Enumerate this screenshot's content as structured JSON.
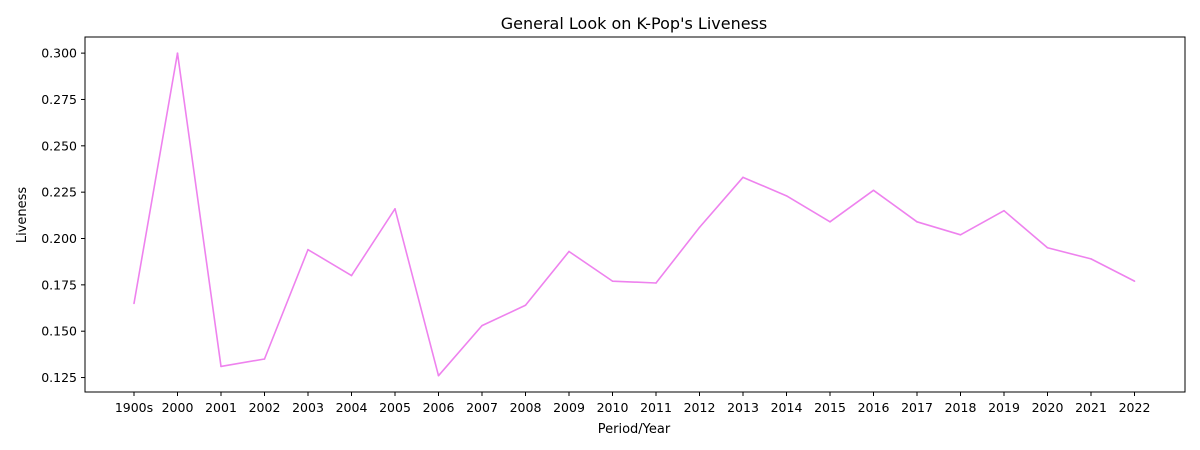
{
  "chart_data": {
    "type": "line",
    "title": "General Look on K-Pop's Liveness",
    "xlabel": "Period/Year",
    "ylabel": "Liveness",
    "categories": [
      "1900s",
      "2000",
      "2001",
      "2002",
      "2003",
      "2004",
      "2005",
      "2006",
      "2007",
      "2008",
      "2009",
      "2010",
      "2011",
      "2012",
      "2013",
      "2014",
      "2015",
      "2016",
      "2017",
      "2018",
      "2019",
      "2020",
      "2021",
      "2022"
    ],
    "series": [
      {
        "values": [
          0.165,
          0.3,
          0.131,
          0.135,
          0.194,
          0.18,
          0.216,
          0.126,
          0.153,
          0.164,
          0.193,
          0.177,
          0.176,
          0.206,
          0.233,
          0.223,
          0.209,
          0.226,
          0.209,
          0.202,
          0.215,
          0.195,
          0.189,
          0.177
        ],
        "color": "#ee82ee"
      }
    ],
    "ylim": [
      0.1172,
      0.3087
    ],
    "yticks": [
      "0.125",
      "0.150",
      "0.175",
      "0.200",
      "0.225",
      "0.250",
      "0.275",
      "0.300"
    ],
    "grid": false,
    "legend": "none"
  }
}
